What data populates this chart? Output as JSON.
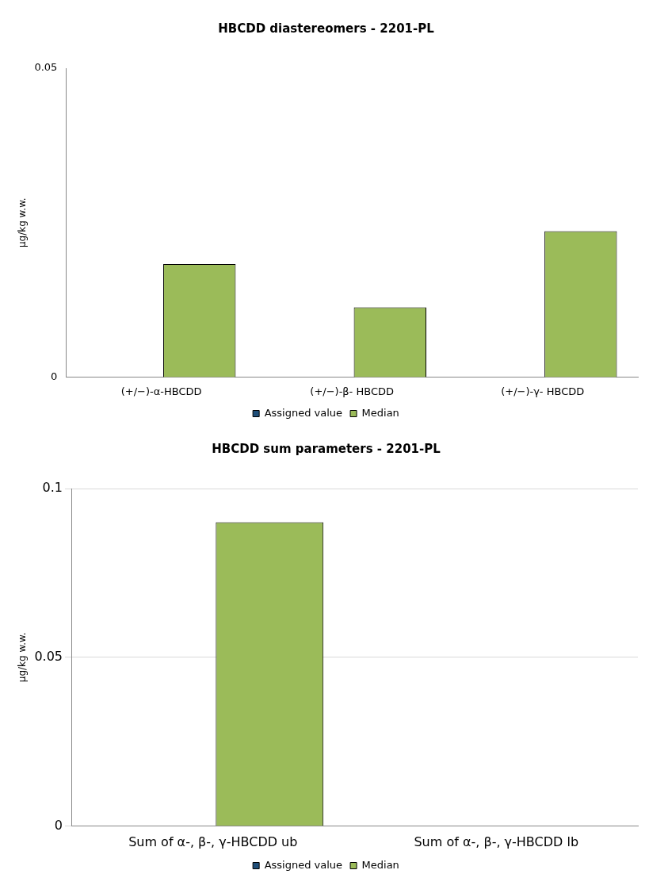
{
  "chart_data": [
    {
      "type": "bar",
      "title": "HBCDD diastereomers - 2201-PL",
      "ylabel": "µg/kg w.w.",
      "categories": [
        "(+/−)-α-HBCDD",
        "(+/−)-β- HBCDD",
        "(+/−)-γ- HBCDD"
      ],
      "series": [
        {
          "name": "Assigned value",
          "color": "#1f4e79",
          "values": [
            null,
            null,
            null
          ]
        },
        {
          "name": "Median",
          "color": "#9bbb59",
          "values": [
            0.0183,
            0.0113,
            0.0236
          ]
        }
      ],
      "ylim": [
        0,
        0.05
      ],
      "yticks": [
        0,
        0.05
      ],
      "legend": "bottom"
    },
    {
      "type": "bar",
      "title": "HBCDD sum parameters - 2201-PL",
      "ylabel": "µg/kg w.w.",
      "categories": [
        "Sum of α-, β-, γ-HBCDD ub",
        "Sum of α-, β-, γ-HBCDD lb"
      ],
      "series": [
        {
          "name": "Assigned value",
          "color": "#1f4e79",
          "values": [
            null,
            null
          ]
        },
        {
          "name": "Median",
          "color": "#9bbb59",
          "values": [
            0.09,
            null
          ]
        }
      ],
      "ylim": [
        0,
        0.1
      ],
      "yticks": [
        0,
        0.05,
        0.1
      ],
      "grid": "y",
      "legend": "bottom"
    }
  ]
}
